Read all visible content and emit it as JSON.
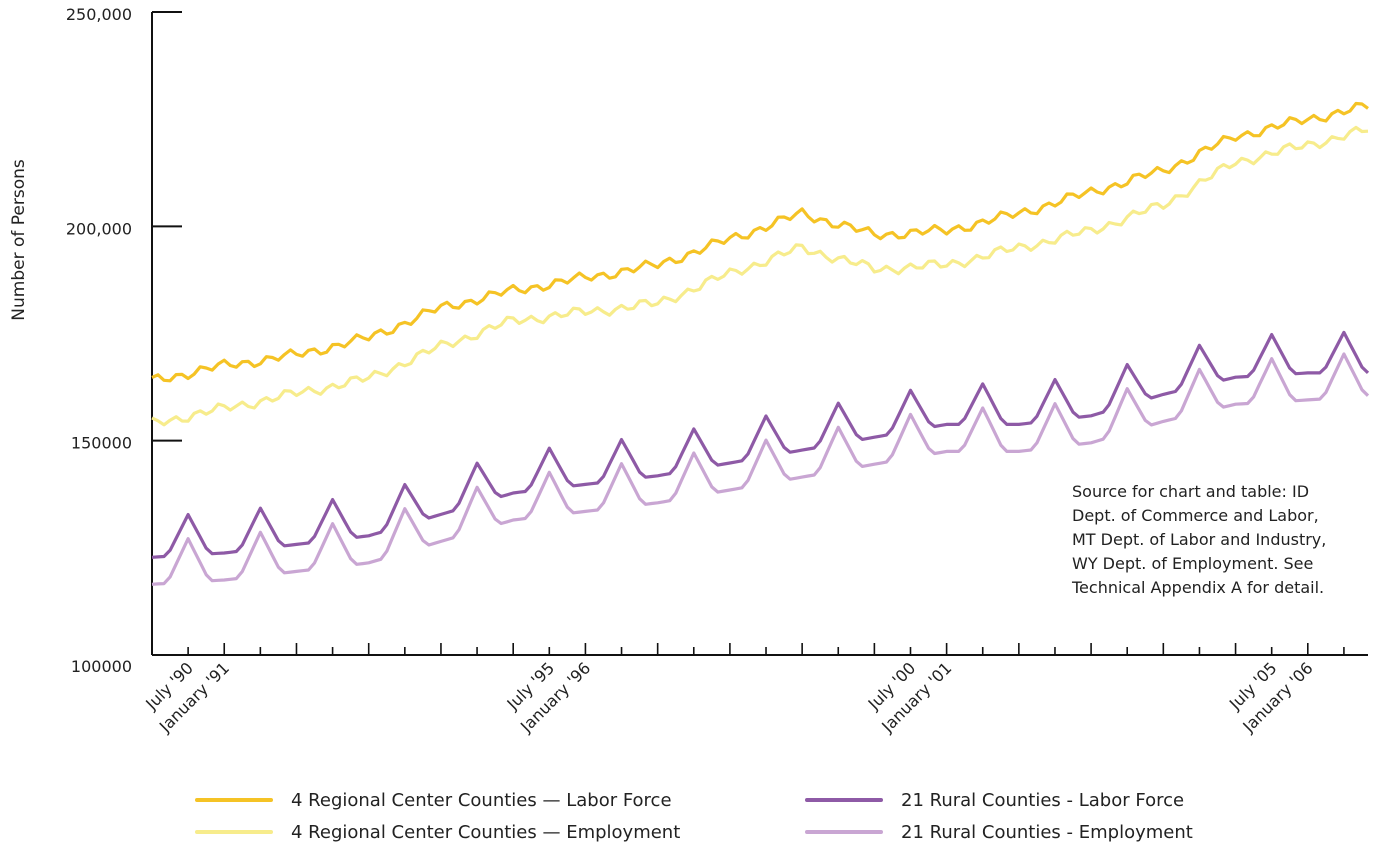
{
  "chart_data": {
    "type": "line",
    "ylabel": "Number of Persons",
    "xlabel": "",
    "ylim": [
      100000,
      250000
    ],
    "y_ticks": [
      "250,000",
      "200,000",
      "150000",
      "100000"
    ],
    "y_tick_values": [
      250000,
      200000,
      150000,
      100000
    ],
    "x_range": [
      "1990-01",
      "2006-11"
    ],
    "x_tick_labels": [
      {
        "label": "July '90",
        "date": "1990-07"
      },
      {
        "label": "January '91",
        "date": "1991-01"
      },
      {
        "label": "July '95",
        "date": "1995-07"
      },
      {
        "label": "January '96",
        "date": "1996-01"
      },
      {
        "label": "July '00",
        "date": "2000-07"
      },
      {
        "label": "January '01",
        "date": "2001-01"
      },
      {
        "label": "July '05",
        "date": "2005-07"
      },
      {
        "label": "January '06",
        "date": "2006-01"
      }
    ],
    "legend_position": "bottom",
    "grid": false,
    "series": [
      {
        "name": "4 Regional Center Counties — Labor Force",
        "color": "#F5C325",
        "points": [
          [
            "1990-01",
            164000
          ],
          [
            "1991-01",
            167500
          ],
          [
            "1992-01",
            170000
          ],
          [
            "1993-01",
            174000
          ],
          [
            "1994-01",
            181000
          ],
          [
            "1995-01",
            185000
          ],
          [
            "1996-01",
            188000
          ],
          [
            "1997-01",
            191000
          ],
          [
            "1998-01",
            197000
          ],
          [
            "1999-01",
            203000
          ],
          [
            "2000-01",
            198000
          ],
          [
            "2001-01",
            199000
          ],
          [
            "2002-01",
            203000
          ],
          [
            "2003-01",
            208000
          ],
          [
            "2004-01",
            213000
          ],
          [
            "2005-01",
            221000
          ],
          [
            "2006-01",
            225000
          ],
          [
            "2006-11",
            228000
          ]
        ]
      },
      {
        "name": "4 Regional Center Counties — Employment",
        "color": "#F7EC8C",
        "points": [
          [
            "1990-01",
            154000
          ],
          [
            "1991-01",
            157500
          ],
          [
            "1992-01",
            161000
          ],
          [
            "1993-01",
            164500
          ],
          [
            "1994-01",
            172000
          ],
          [
            "1995-01",
            178000
          ],
          [
            "1996-01",
            180000
          ],
          [
            "1997-01",
            182000
          ],
          [
            "1998-01",
            189000
          ],
          [
            "1999-01",
            195000
          ],
          [
            "2000-01",
            190000
          ],
          [
            "2001-01",
            191000
          ],
          [
            "2002-01",
            195000
          ],
          [
            "2003-01",
            199000
          ],
          [
            "2004-01",
            205000
          ],
          [
            "2005-01",
            215000
          ],
          [
            "2006-01",
            219000
          ],
          [
            "2006-11",
            222500
          ]
        ]
      },
      {
        "name": "21 Rural Counties - Labor Force",
        "color": "#8E5AA6",
        "seasonal_amplitude": 7000,
        "peak_month": 7,
        "points": [
          [
            "1990-01",
            127000
          ],
          [
            "1991-01",
            128000
          ],
          [
            "1992-01",
            130000
          ],
          [
            "1993-01",
            132000
          ],
          [
            "1994-01",
            137000
          ],
          [
            "1995-01",
            142000
          ],
          [
            "1996-01",
            144000
          ],
          [
            "1997-01",
            146000
          ],
          [
            "1998-01",
            149000
          ],
          [
            "1999-01",
            152000
          ],
          [
            "2000-01",
            155000
          ],
          [
            "2001-01",
            158000
          ],
          [
            "2002-01",
            158000
          ],
          [
            "2003-01",
            160000
          ],
          [
            "2004-01",
            165000
          ],
          [
            "2005-01",
            169000
          ],
          [
            "2006-01",
            170000
          ],
          [
            "2006-11",
            170000
          ]
        ]
      },
      {
        "name": "21 Rural Counties - Employment",
        "color": "#C9A6D3",
        "seasonal_amplitude": 7500,
        "peak_month": 7,
        "points": [
          [
            "1990-01",
            121000
          ],
          [
            "1991-01",
            122000
          ],
          [
            "1992-01",
            124000
          ],
          [
            "1993-01",
            126000
          ],
          [
            "1994-01",
            131000
          ],
          [
            "1995-01",
            136000
          ],
          [
            "1996-01",
            138000
          ],
          [
            "1997-01",
            140000
          ],
          [
            "1998-01",
            143000
          ],
          [
            "1999-01",
            146000
          ],
          [
            "2000-01",
            149000
          ],
          [
            "2001-01",
            152000
          ],
          [
            "2002-01",
            152000
          ],
          [
            "2003-01",
            154000
          ],
          [
            "2004-01",
            159000
          ],
          [
            "2005-01",
            163000
          ],
          [
            "2006-01",
            164000
          ],
          [
            "2006-11",
            165000
          ]
        ]
      }
    ],
    "annotation": "Source for chart and table: ID\nDept. of Commerce and Labor,\nMT Dept. of Labor and Industry,\nWY Dept. of Employment. See\nTechnical Appendix A for detail."
  }
}
